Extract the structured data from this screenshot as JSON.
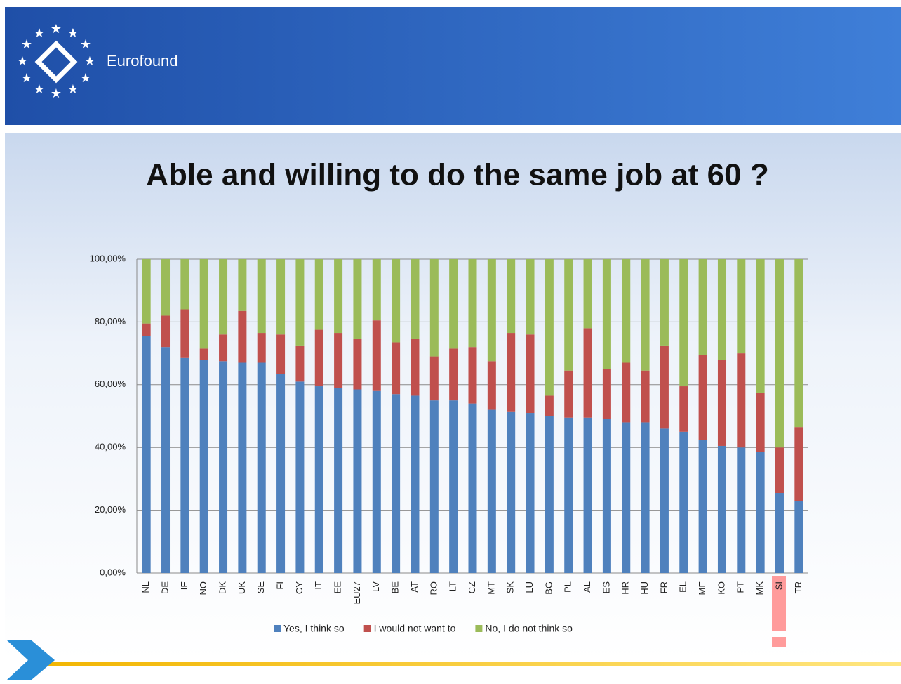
{
  "header": {
    "brand": "Eurofound"
  },
  "chart_data": {
    "type": "stacked_bar",
    "title": "Able and willing to do the same job at 60 ?",
    "categories": [
      "NL",
      "DE",
      "IE",
      "NO",
      "DK",
      "UK",
      "SE",
      "FI",
      "CY",
      "IT",
      "EE",
      "EU27",
      "LV",
      "BE",
      "AT",
      "RO",
      "LT",
      "CZ",
      "MT",
      "SK",
      "LU",
      "BG",
      "PL",
      "AL",
      "ES",
      "HR",
      "HU",
      "FR",
      "EL",
      "ME",
      "KO",
      "PT",
      "MK",
      "SI",
      "TR"
    ],
    "series": [
      {
        "name": "Yes, I think so",
        "color": "#4f81bd",
        "values": [
          75.5,
          72,
          68.5,
          68,
          67.5,
          67,
          67,
          63.5,
          61,
          59.5,
          59,
          58.5,
          58,
          57,
          56.5,
          55,
          55,
          54,
          52,
          51.5,
          51,
          50,
          49.5,
          49.5,
          49,
          48,
          48,
          46,
          45,
          42.5,
          40.5,
          40,
          38.5,
          25.5,
          23
        ]
      },
      {
        "name": "I would not want to",
        "color": "#c0504d",
        "values": [
          4,
          10,
          15.5,
          3.5,
          8.5,
          16.5,
          9.5,
          12.5,
          11.5,
          18,
          17.5,
          16,
          22.5,
          16.5,
          18,
          14,
          16.5,
          18,
          15.5,
          25,
          25,
          6.5,
          15,
          28.5,
          16,
          19,
          16.5,
          26.5,
          14.5,
          27,
          27.5,
          30,
          19,
          14.5,
          23.5
        ]
      },
      {
        "name": "No, I do not think so",
        "color": "#9bbb59",
        "values": [
          20.5,
          18,
          16,
          28.5,
          24,
          16.5,
          23.5,
          24,
          27.5,
          22.5,
          23.5,
          25.5,
          19.5,
          26.5,
          25.5,
          31,
          28.5,
          28,
          32.5,
          23.5,
          24,
          43.5,
          35.5,
          22,
          35,
          33,
          35.5,
          27.5,
          40.5,
          30.5,
          32,
          30,
          42.5,
          60,
          53.5
        ]
      }
    ],
    "ylim": [
      0,
      100
    ],
    "yticks": [
      {
        "value": 0,
        "label": "0,00%"
      },
      {
        "value": 20,
        "label": "20,00%"
      },
      {
        "value": 40,
        "label": "40,00%"
      },
      {
        "value": 60,
        "label": "60,00%"
      },
      {
        "value": 80,
        "label": "80,00%"
      },
      {
        "value": 100,
        "label": "100,00%"
      }
    ],
    "grid": true,
    "legend": "bottom"
  }
}
